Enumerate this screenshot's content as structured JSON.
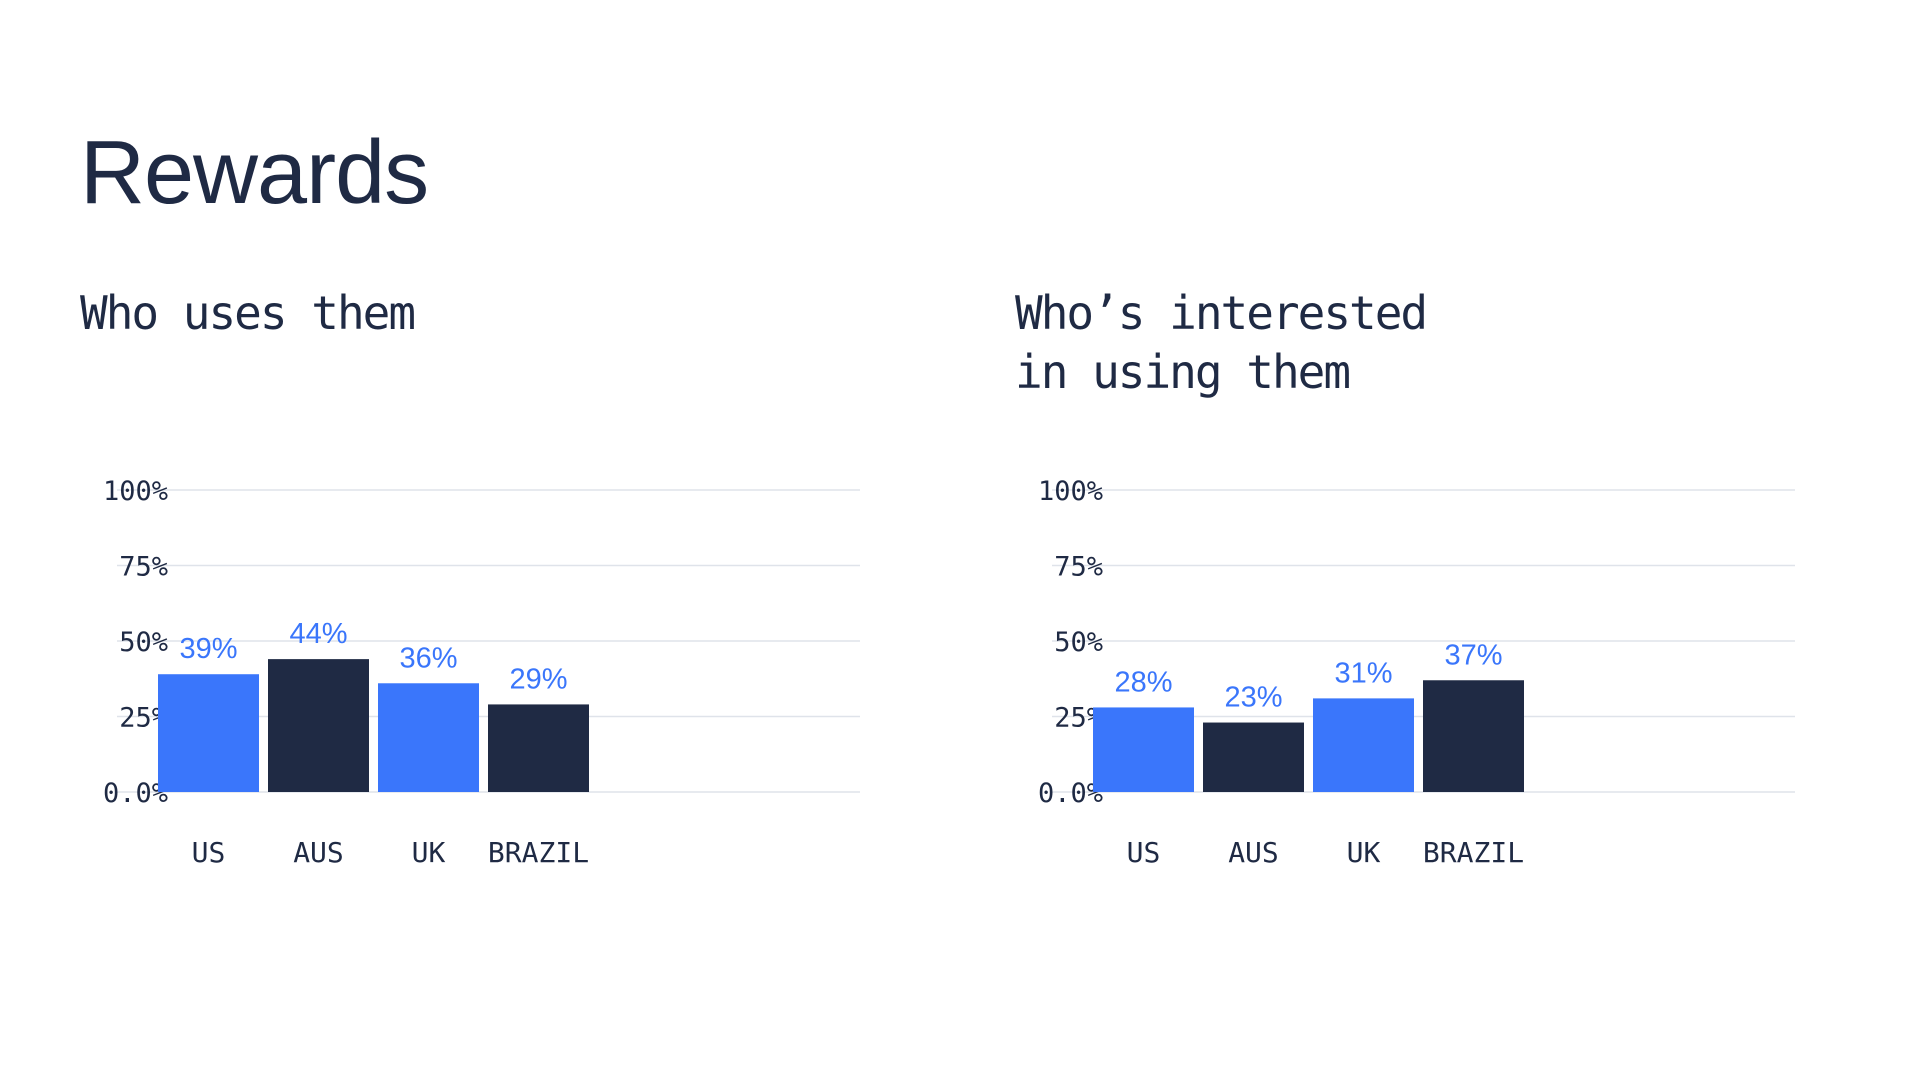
{
  "page": {
    "title": "Rewards"
  },
  "colors": {
    "blue": "#3a76fb",
    "navy": "#1f2a44",
    "label": "#3a76fb"
  },
  "chart_data": [
    {
      "type": "bar",
      "title": "Who uses them",
      "categories": [
        "US",
        "AUS",
        "UK",
        "BRAZIL"
      ],
      "values": [
        39,
        44,
        36,
        29
      ],
      "value_labels": [
        "39%",
        "44%",
        "36%",
        "29%"
      ],
      "bar_colors": [
        "blue",
        "navy",
        "blue",
        "navy"
      ],
      "y_ticks": [
        {
          "value": 0,
          "label": "0.0%"
        },
        {
          "value": 25,
          "label": "25%"
        },
        {
          "value": 50,
          "label": "50%"
        },
        {
          "value": 75,
          "label": "75%"
        },
        {
          "value": 100,
          "label": "100%"
        }
      ],
      "xlabel": "",
      "ylabel": "",
      "ylim": [
        0,
        100
      ],
      "grid": true
    },
    {
      "type": "bar",
      "title": "Who’s interested\nin using them",
      "categories": [
        "US",
        "AUS",
        "UK",
        "BRAZIL"
      ],
      "values": [
        28,
        23,
        31,
        37
      ],
      "value_labels": [
        "28%",
        "23%",
        "31%",
        "37%"
      ],
      "bar_colors": [
        "blue",
        "navy",
        "blue",
        "navy"
      ],
      "y_ticks": [
        {
          "value": 0,
          "label": "0.0%"
        },
        {
          "value": 25,
          "label": "25%"
        },
        {
          "value": 50,
          "label": "50%"
        },
        {
          "value": 75,
          "label": "75%"
        },
        {
          "value": 100,
          "label": "100%"
        }
      ],
      "xlabel": "",
      "ylabel": "",
      "ylim": [
        0,
        100
      ],
      "grid": true
    }
  ]
}
